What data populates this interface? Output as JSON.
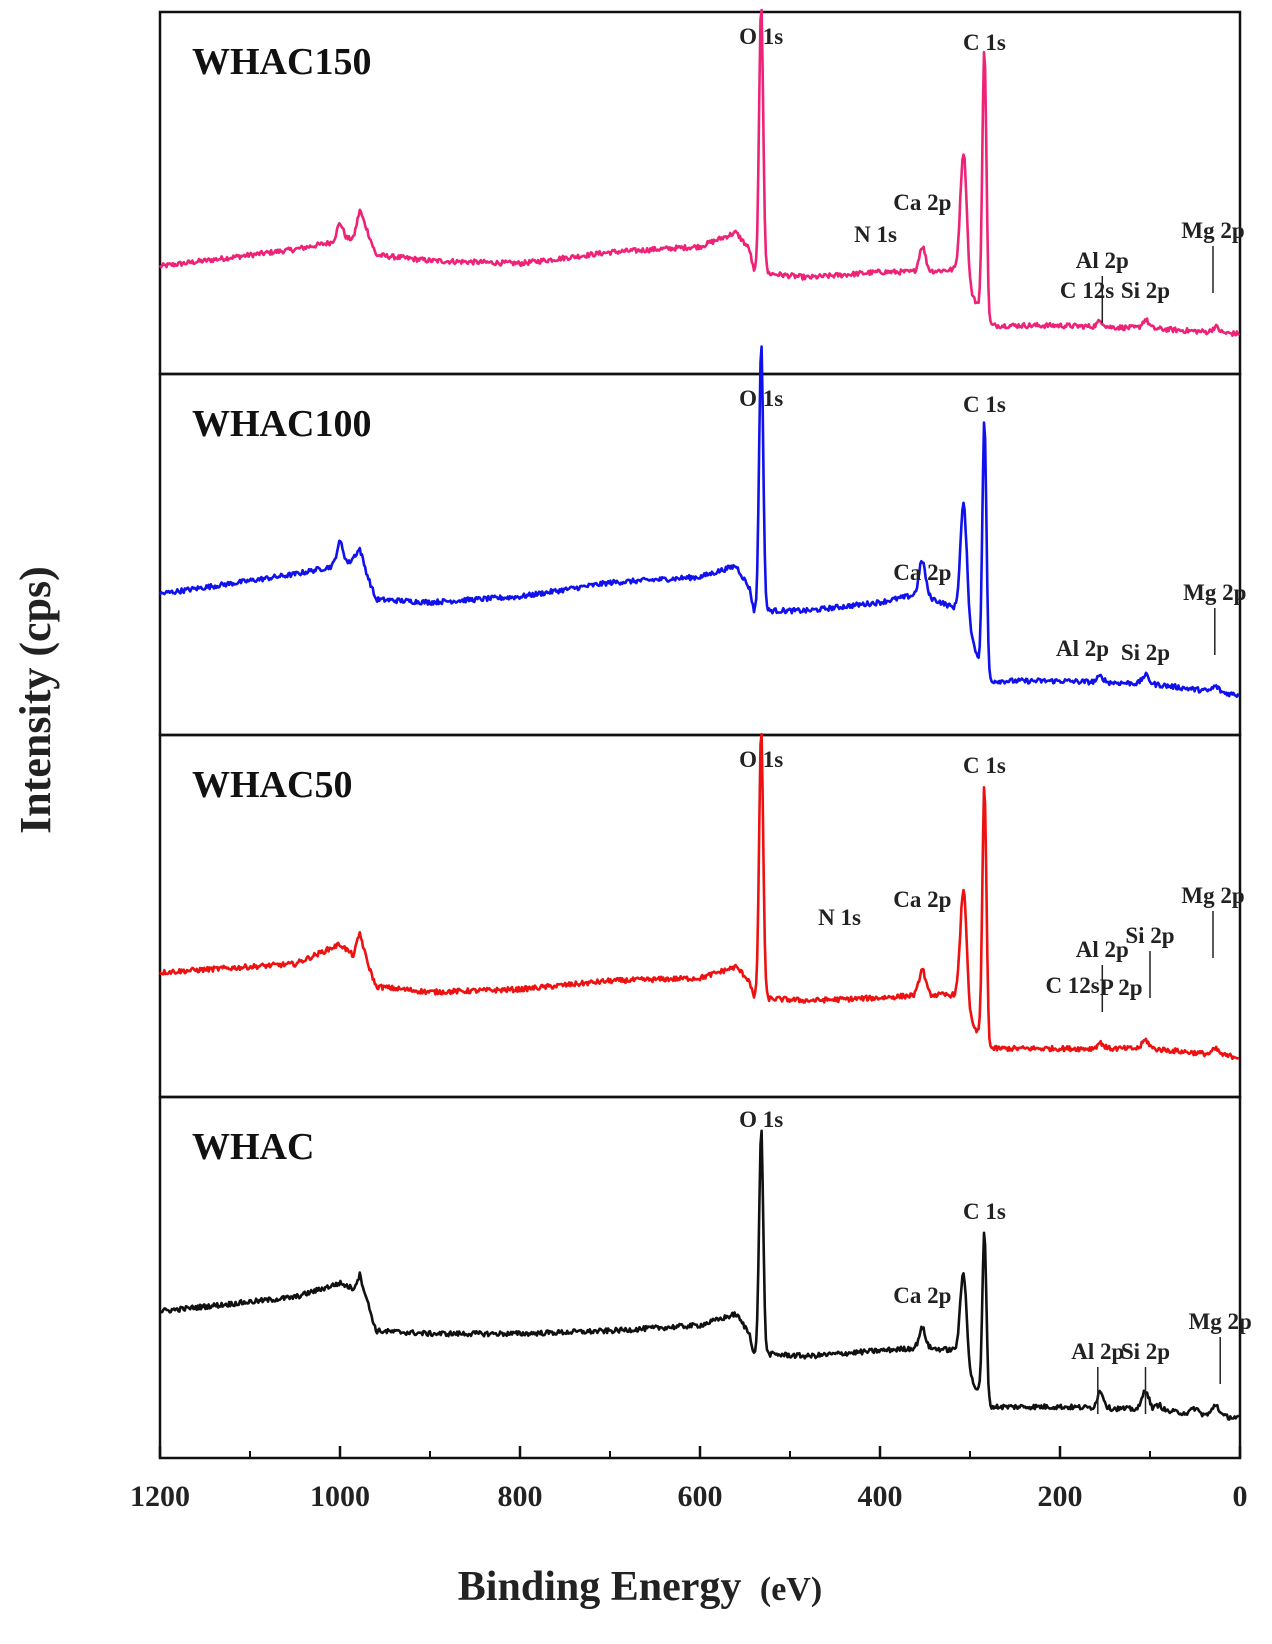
{
  "chart_data": {
    "type": "line",
    "title": "",
    "xlabel": "Binding Energy",
    "xlabel_unit": "(eV)",
    "ylabel": "Intensity (cps)",
    "xlim": [
      1200,
      0
    ],
    "x_ticks": [
      1200,
      1000,
      800,
      600,
      400,
      200,
      0
    ],
    "x_tick_labels": [
      "1200",
      "1000",
      "800",
      "600",
      "400",
      "200",
      "0"
    ],
    "y_ticks_shown": false,
    "series": [
      {
        "name": "WHAC150",
        "color": "#ee2277",
        "baseline_profile": [
          [
            1200,
            0.24
          ],
          [
            1050,
            0.3
          ],
          [
            985,
            0.34
          ],
          [
            978,
            0.44
          ],
          [
            970,
            0.37
          ],
          [
            960,
            0.28
          ],
          [
            900,
            0.26
          ],
          [
            800,
            0.25
          ],
          [
            700,
            0.29
          ],
          [
            600,
            0.31
          ],
          [
            560,
            0.36
          ],
          [
            545,
            0.3
          ],
          [
            540,
            0.22
          ],
          [
            480,
            0.2
          ],
          [
            400,
            0.22
          ],
          [
            355,
            0.22
          ],
          [
            310,
            0.23
          ],
          [
            300,
            0.14
          ],
          [
            290,
            0.1
          ],
          [
            280,
            0.03
          ],
          [
            200,
            0.03
          ],
          [
            100,
            0.02
          ],
          [
            0,
            0.0
          ]
        ],
        "peaks": [
          [
            532,
            0.95
          ],
          [
            353,
            0.09
          ],
          [
            307,
            0.44
          ],
          [
            284,
            0.96
          ],
          [
            1000,
            0.06
          ],
          [
            155,
            0.02
          ],
          [
            105,
            0.03
          ],
          [
            27,
            0.02
          ]
        ],
        "annotations": [
          {
            "text": "O 1s",
            "x": 532
          },
          {
            "text": "C 1s",
            "x": 284
          },
          {
            "text": "N 1s",
            "x": 405
          },
          {
            "text": "Ca 2p",
            "x": 353
          },
          {
            "text": "Al 2p",
            "x": 153,
            "marker": true
          },
          {
            "text": "C 12s",
            "x": 170
          },
          {
            "text": "Si 2p",
            "x": 105
          },
          {
            "text": "Mg 2p",
            "x": 30,
            "marker": true
          }
        ]
      },
      {
        "name": "WHAC100",
        "color": "#1111ee",
        "baseline_profile": [
          [
            1200,
            0.36
          ],
          [
            1050,
            0.43
          ],
          [
            990,
            0.47
          ],
          [
            978,
            0.52
          ],
          [
            970,
            0.43
          ],
          [
            960,
            0.34
          ],
          [
            900,
            0.33
          ],
          [
            800,
            0.35
          ],
          [
            700,
            0.4
          ],
          [
            600,
            0.42
          ],
          [
            560,
            0.46
          ],
          [
            545,
            0.38
          ],
          [
            540,
            0.3
          ],
          [
            480,
            0.3
          ],
          [
            400,
            0.33
          ],
          [
            355,
            0.36
          ],
          [
            310,
            0.3
          ],
          [
            300,
            0.22
          ],
          [
            290,
            0.12
          ],
          [
            280,
            0.05
          ],
          [
            200,
            0.05
          ],
          [
            100,
            0.04
          ],
          [
            0,
            0.0
          ]
        ],
        "peaks": [
          [
            532,
            0.95
          ],
          [
            353,
            0.12
          ],
          [
            307,
            0.4
          ],
          [
            284,
            0.9
          ],
          [
            1000,
            0.08
          ],
          [
            155,
            0.02
          ],
          [
            105,
            0.03
          ],
          [
            27,
            0.02
          ]
        ],
        "annotations": [
          {
            "text": "O 1s",
            "x": 532
          },
          {
            "text": "C 1s",
            "x": 284
          },
          {
            "text": "Ca 2p",
            "x": 353
          },
          {
            "text": "Al 2p",
            "x": 175
          },
          {
            "text": "Si 2p",
            "x": 105
          },
          {
            "text": "Mg 2p",
            "x": 28,
            "marker": true
          }
        ]
      },
      {
        "name": "WHAC50",
        "color": "#ee1111",
        "baseline_profile": [
          [
            1200,
            0.3
          ],
          [
            1050,
            0.33
          ],
          [
            1000,
            0.4
          ],
          [
            985,
            0.36
          ],
          [
            978,
            0.44
          ],
          [
            970,
            0.34
          ],
          [
            960,
            0.25
          ],
          [
            900,
            0.23
          ],
          [
            800,
            0.24
          ],
          [
            700,
            0.27
          ],
          [
            600,
            0.28
          ],
          [
            560,
            0.32
          ],
          [
            545,
            0.27
          ],
          [
            540,
            0.21
          ],
          [
            480,
            0.2
          ],
          [
            400,
            0.21
          ],
          [
            355,
            0.22
          ],
          [
            310,
            0.22
          ],
          [
            300,
            0.12
          ],
          [
            290,
            0.08
          ],
          [
            280,
            0.03
          ],
          [
            200,
            0.03
          ],
          [
            100,
            0.03
          ],
          [
            0,
            0.0
          ]
        ],
        "peaks": [
          [
            532,
            0.95
          ],
          [
            353,
            0.09
          ],
          [
            307,
            0.4
          ],
          [
            284,
            0.91
          ],
          [
            155,
            0.02
          ],
          [
            105,
            0.03
          ],
          [
            27,
            0.02
          ]
        ],
        "annotations": [
          {
            "text": "O 1s",
            "x": 532
          },
          {
            "text": "C 1s",
            "x": 284
          },
          {
            "text": "N 1s",
            "x": 445
          },
          {
            "text": "Ca 2p",
            "x": 353
          },
          {
            "text": "Al 2p",
            "x": 153,
            "marker": true
          },
          {
            "text": "C 12s",
            "x": 186
          },
          {
            "text": "Si 2p",
            "x": 100,
            "marker": true
          },
          {
            "text": "P 2p",
            "x": 132
          },
          {
            "text": "Mg 2p",
            "x": 30,
            "marker": true
          }
        ]
      },
      {
        "name": "WHAC",
        "color": "#111111",
        "baseline_profile": [
          [
            1200,
            0.38
          ],
          [
            1050,
            0.43
          ],
          [
            1000,
            0.48
          ],
          [
            985,
            0.46
          ],
          [
            978,
            0.51
          ],
          [
            970,
            0.42
          ],
          [
            960,
            0.31
          ],
          [
            900,
            0.3
          ],
          [
            800,
            0.3
          ],
          [
            700,
            0.31
          ],
          [
            600,
            0.33
          ],
          [
            560,
            0.37
          ],
          [
            545,
            0.3
          ],
          [
            540,
            0.23
          ],
          [
            480,
            0.22
          ],
          [
            400,
            0.24
          ],
          [
            355,
            0.25
          ],
          [
            310,
            0.24
          ],
          [
            300,
            0.14
          ],
          [
            290,
            0.09
          ],
          [
            280,
            0.04
          ],
          [
            200,
            0.04
          ],
          [
            100,
            0.03
          ],
          [
            0,
            0.0
          ]
        ],
        "peaks": [
          [
            532,
            0.8
          ],
          [
            353,
            0.07
          ],
          [
            307,
            0.3
          ],
          [
            284,
            0.6
          ],
          [
            155,
            0.06
          ],
          [
            105,
            0.07
          ],
          [
            90,
            0.02
          ],
          [
            50,
            0.02
          ],
          [
            27,
            0.04
          ]
        ],
        "annotations": [
          {
            "text": "O 1s",
            "x": 532
          },
          {
            "text": "C 1s",
            "x": 284
          },
          {
            "text": "Ca 2p",
            "x": 353
          },
          {
            "text": "Al 2p",
            "x": 158,
            "marker": true
          },
          {
            "text": "Si 2p",
            "x": 105,
            "marker": true
          },
          {
            "text": "Mg 2p",
            "x": 22,
            "marker": true
          }
        ]
      }
    ]
  }
}
